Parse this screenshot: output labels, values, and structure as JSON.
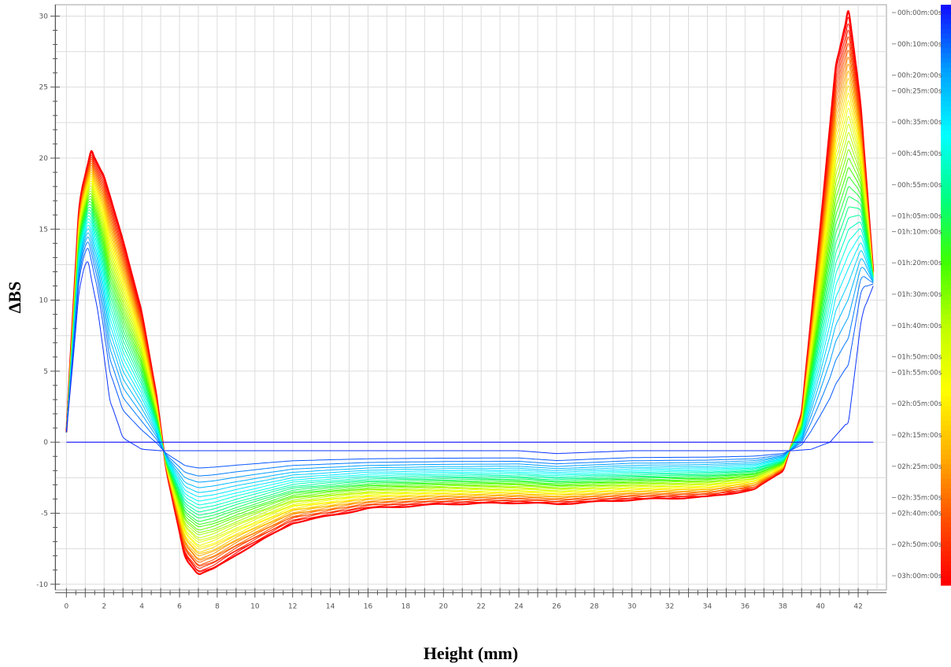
{
  "chart_data": {
    "type": "line",
    "title": "",
    "xlabel": "Height (mm)",
    "ylabel": "ΔBS",
    "xlim": [
      -0.6,
      43.5
    ],
    "ylim": [
      -10.4,
      30.8
    ],
    "x_ticks": [
      0,
      2,
      4,
      6,
      8,
      10,
      12,
      14,
      16,
      18,
      20,
      22,
      24,
      26,
      28,
      30,
      32,
      34,
      36,
      38,
      40,
      42
    ],
    "y_ticks": [
      -10,
      -5,
      0,
      5,
      10,
      15,
      20,
      25,
      30
    ],
    "grid": true,
    "legend_position": "right",
    "colorbar": {
      "colors": [
        "#1010ff",
        "#00a0ff",
        "#00ffff",
        "#00ff80",
        "#40ff00",
        "#c0ff00",
        "#ffff00",
        "#ffb000",
        "#ff5000",
        "#ff0000"
      ],
      "labels": [
        {
          "text": "00h:00m:00s",
          "value": 0
        },
        {
          "text": "00h:10m:00s",
          "value": 10
        },
        {
          "text": "00h:20m:00s",
          "value": 20
        },
        {
          "text": "00h:25m:00s",
          "value": 25
        },
        {
          "text": "00h:35m:00s",
          "value": 35
        },
        {
          "text": "00h:45m:00s",
          "value": 45
        },
        {
          "text": "00h:55m:00s",
          "value": 55
        },
        {
          "text": "01h:05m:00s",
          "value": 65
        },
        {
          "text": "01h:10m:00s",
          "value": 70
        },
        {
          "text": "01h:20m:00s",
          "value": 80
        },
        {
          "text": "01h:30m:00s",
          "value": 90
        },
        {
          "text": "01h:40m:00s",
          "value": 100
        },
        {
          "text": "01h:50m:00s",
          "value": 110
        },
        {
          "text": "01h:55m:00s",
          "value": 115
        },
        {
          "text": "02h:05m:00s",
          "value": 125
        },
        {
          "text": "02h:15m:00s",
          "value": 135
        },
        {
          "text": "02h:25m:00s",
          "value": 145
        },
        {
          "text": "02h:35m:00s",
          "value": 155
        },
        {
          "text": "02h:40m:00s",
          "value": 160
        },
        {
          "text": "02h:50m:00s",
          "value": 170
        },
        {
          "text": "03h:00m:00s",
          "value": 180
        }
      ]
    },
    "series_count": 37,
    "series_time_step_min": 5,
    "baseline": {
      "t": 0,
      "x": [
        0,
        42.8
      ],
      "y": [
        0,
        0
      ]
    },
    "series": [
      {
        "t": 5,
        "x": [
          0,
          0.3,
          0.7,
          1.1,
          1.7,
          2.3,
          3.0,
          4.0,
          5.0,
          5.6,
          6.5,
          7.2,
          9,
          12,
          16,
          20,
          24,
          26,
          30,
          34,
          37,
          38.5,
          39.5,
          40.5,
          41.5,
          42.2,
          42.8
        ],
        "y": [
          0.7,
          5,
          11,
          13,
          9,
          3,
          0.3,
          -0.5,
          -0.6,
          -0.6,
          -0.6,
          -0.6,
          -0.6,
          -0.6,
          -0.6,
          -0.6,
          -0.6,
          -0.8,
          -0.6,
          -0.6,
          -0.6,
          -0.6,
          -0.5,
          0,
          1.5,
          9,
          11
        ]
      },
      {
        "t": 180,
        "x": [
          0,
          0.3,
          0.7,
          1.3,
          2.0,
          3.0,
          4.0,
          4.8,
          5.3,
          5.8,
          6.3,
          7.0,
          7.8,
          9,
          12,
          16,
          20,
          24,
          26,
          30,
          34,
          36.5,
          38.0,
          39.0,
          40.0,
          40.8,
          41.5,
          42.1,
          42.8
        ],
        "y": [
          0.7,
          8,
          17,
          20.4,
          18.5,
          14,
          9,
          3,
          -2,
          -5,
          -8,
          -9.2,
          -8.8,
          -7.8,
          -5.6,
          -4.6,
          -4.3,
          -4.2,
          -4.3,
          -4.0,
          -3.8,
          -3.3,
          -2.0,
          2,
          15,
          26,
          30,
          24,
          12
        ]
      }
    ]
  }
}
